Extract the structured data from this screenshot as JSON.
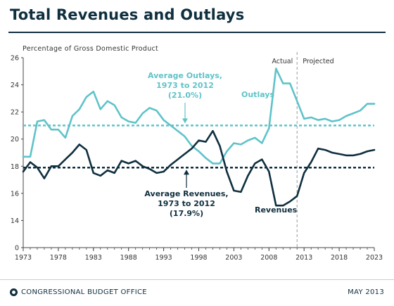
{
  "header": {
    "title": "Total Revenues and Outlays"
  },
  "footer": {
    "agency": "CONGRESSIONAL BUDGET OFFICE",
    "date": "MAY 2013"
  },
  "chart_data": {
    "type": "line",
    "ylabel": "Percentage of Gross Domestic Product",
    "ylim": [
      0,
      26
    ],
    "yticks": [
      0,
      14,
      16,
      18,
      20,
      22,
      24,
      26
    ],
    "xlim": [
      1973,
      2023
    ],
    "xticks": [
      "1973",
      "1978",
      "1983",
      "1988",
      "1993",
      "1998",
      "2003",
      "2008",
      "2013",
      "2018",
      "2023"
    ],
    "x": [
      1973,
      1974,
      1975,
      1976,
      1977,
      1978,
      1979,
      1980,
      1981,
      1982,
      1983,
      1984,
      1985,
      1986,
      1987,
      1988,
      1989,
      1990,
      1991,
      1992,
      1993,
      1994,
      1995,
      1996,
      1997,
      1998,
      1999,
      2000,
      2001,
      2002,
      2003,
      2004,
      2005,
      2006,
      2007,
      2008,
      2009,
      2010,
      2011,
      2012,
      2013,
      2014,
      2015,
      2016,
      2017,
      2018,
      2019,
      2020,
      2021,
      2022,
      2023
    ],
    "series": [
      {
        "name": "Outlays",
        "color": "#5fc3c9",
        "values": [
          18.7,
          18.7,
          21.3,
          21.4,
          20.7,
          20.7,
          20.1,
          21.7,
          22.2,
          23.1,
          23.5,
          22.2,
          22.8,
          22.5,
          21.6,
          21.3,
          21.2,
          21.9,
          22.3,
          22.1,
          21.4,
          21.0,
          20.6,
          20.2,
          19.5,
          19.1,
          18.6,
          18.2,
          18.2,
          19.1,
          19.7,
          19.6,
          19.9,
          20.1,
          19.7,
          20.8,
          25.2,
          24.1,
          24.1,
          22.8,
          21.5,
          21.6,
          21.4,
          21.5,
          21.3,
          21.4,
          21.7,
          21.9,
          22.1,
          22.6,
          22.6
        ]
      },
      {
        "name": "Revenues",
        "color": "#0f2f3f",
        "values": [
          17.6,
          18.3,
          17.9,
          17.1,
          18.0,
          18.0,
          18.5,
          19.0,
          19.6,
          19.2,
          17.5,
          17.3,
          17.7,
          17.5,
          18.4,
          18.2,
          18.4,
          18.0,
          17.8,
          17.5,
          17.6,
          18.1,
          18.5,
          18.9,
          19.3,
          19.9,
          19.8,
          20.6,
          19.5,
          17.6,
          16.2,
          16.1,
          17.3,
          18.2,
          18.5,
          17.6,
          15.1,
          15.1,
          15.4,
          15.8,
          17.5,
          18.3,
          19.3,
          19.2,
          19.0,
          18.9,
          18.8,
          18.8,
          18.9,
          19.1,
          19.2
        ]
      }
    ],
    "reference_lines": [
      {
        "name": "Average Outlays",
        "value": 21.0,
        "color": "#5fc3c9"
      },
      {
        "name": "Average Revenues",
        "value": 17.9,
        "color": "#0f2f3f"
      }
    ],
    "divider": {
      "x": 2012,
      "left_label": "Actual",
      "right_label": "Projected"
    },
    "annotations": {
      "outlays_label": "Outlays",
      "revenues_label": "Revenues",
      "avg_outlays_lines": [
        "Average Outlays,",
        "1973 to 2012",
        "(21.0%)"
      ],
      "avg_revenues_lines": [
        "Average Revenues,",
        "1973 to 2012",
        "(17.9%)"
      ]
    }
  }
}
